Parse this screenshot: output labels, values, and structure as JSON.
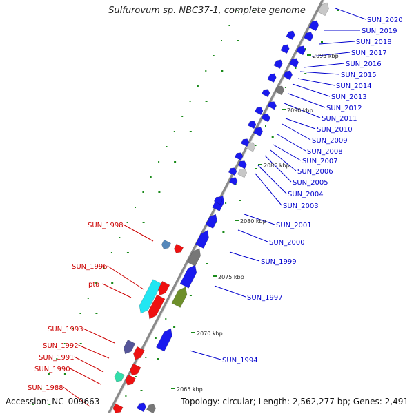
{
  "header": {
    "title": "Sulfurovum sp. NBC37-1, complete genome"
  },
  "footer": {
    "accession": "Accession: NC_009663",
    "stats": "Topology: circular; Length: 2,562,277 bp; Genes: 2,491"
  },
  "colors": {
    "backbone": "#8a8a8a",
    "forward_gene": "#1a1aee",
    "reverse_gene": "#ee1111",
    "label_forward": "#0000cc",
    "label_reverse": "#cc0000",
    "tick": "#1a8a1a",
    "gray_gene": "#777777",
    "light_gray_gene": "#c8c8c8",
    "olive_gene": "#6e8f2a",
    "cyan_gene": "#22e6f2",
    "slate_gene": "#555599",
    "steel_gene": "#5588bb",
    "aqua_gene": "#33ddaa"
  },
  "scale_labels": [
    "2095 kbp",
    "2090 kbp",
    "2085 kbp",
    "2080 kbp",
    "2075 kbp",
    "2070 kbp",
    "2065 kbp"
  ],
  "forward_labels": [
    "SUN_2020",
    "SUN_2019",
    "SUN_2018",
    "SUN_2017",
    "SUN_2016",
    "SUN_2015",
    "SUN_2014",
    "SUN_2013",
    "SUN_2012",
    "SUN_2011",
    "SUN_2010",
    "SUN_2009",
    "SUN_2008",
    "SUN_2007",
    "SUN_2006",
    "SUN_2005",
    "SUN_2004",
    "SUN_2003",
    "SUN_2001",
    "SUN_2000",
    "SUN_1999",
    "SUN_1997",
    "SUN_1994"
  ],
  "reverse_labels": [
    "SUN_1998",
    "SUN_1996",
    "pta",
    "SUN_1993",
    "SUN_1992",
    "SUN_1991",
    "SUN_1990",
    "SUN_1988"
  ]
}
